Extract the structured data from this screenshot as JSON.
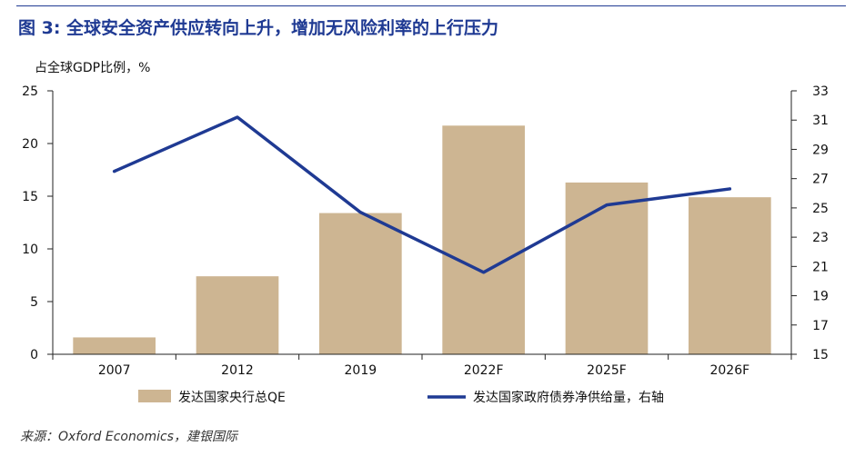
{
  "title": "图 3: 全球安全资产供应转向上升，增加无风险利率的上行压力",
  "unit_label": "占全球GDP比例，%",
  "source": "来源：Oxford Economics，建银国际",
  "colors": {
    "bar": "#cdb592",
    "line": "#1f3a93",
    "title": "#1f3a93"
  },
  "chart_data": {
    "type": "bar",
    "categories": [
      "2007",
      "2012",
      "2019",
      "2022F",
      "2025F",
      "2026F"
    ],
    "series": [
      {
        "name": "发达国家央行总QE",
        "type": "bar",
        "axis": "left",
        "values": [
          1.6,
          7.4,
          13.4,
          21.7,
          16.3,
          14.9
        ]
      },
      {
        "name": "发达国家政府债券净供给量，右轴",
        "type": "line",
        "axis": "right",
        "values": [
          27.5,
          31.2,
          24.7,
          20.6,
          25.2,
          26.3
        ]
      }
    ],
    "ylim_left": [
      0,
      25
    ],
    "yticks_left": [
      "0",
      "5",
      "10",
      "15",
      "20",
      "25"
    ],
    "ylim_right": [
      15,
      33
    ],
    "yticks_right": [
      "15",
      "17",
      "19",
      "21",
      "23",
      "25",
      "27",
      "29",
      "31",
      "33"
    ],
    "grid": false,
    "legend_position": "bottom"
  }
}
